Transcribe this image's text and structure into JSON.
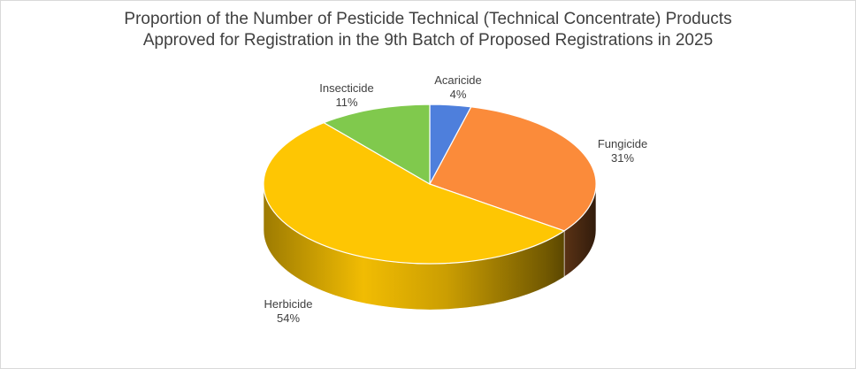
{
  "chart_data": {
    "type": "pie",
    "title_lines": [
      "Proportion of the Number of Pesticide Technical (Technical Concentrate) Products",
      "Approved for Registration in the 9th Batch of Proposed Registrations in 2025"
    ],
    "slices": [
      {
        "label": "Acaricide",
        "percent_label": "4%",
        "value": 4,
        "color": "#4e7fdc"
      },
      {
        "label": "Fungicide",
        "percent_label": "31%",
        "value": 31,
        "color": "#fb8b3a"
      },
      {
        "label": "Herbicide",
        "percent_label": "54%",
        "value": 54,
        "color": "#fec603"
      },
      {
        "label": "Insecticide",
        "percent_label": "11%",
        "value": 11,
        "color": "#80c94d"
      }
    ],
    "legend": false,
    "style": "3d"
  }
}
